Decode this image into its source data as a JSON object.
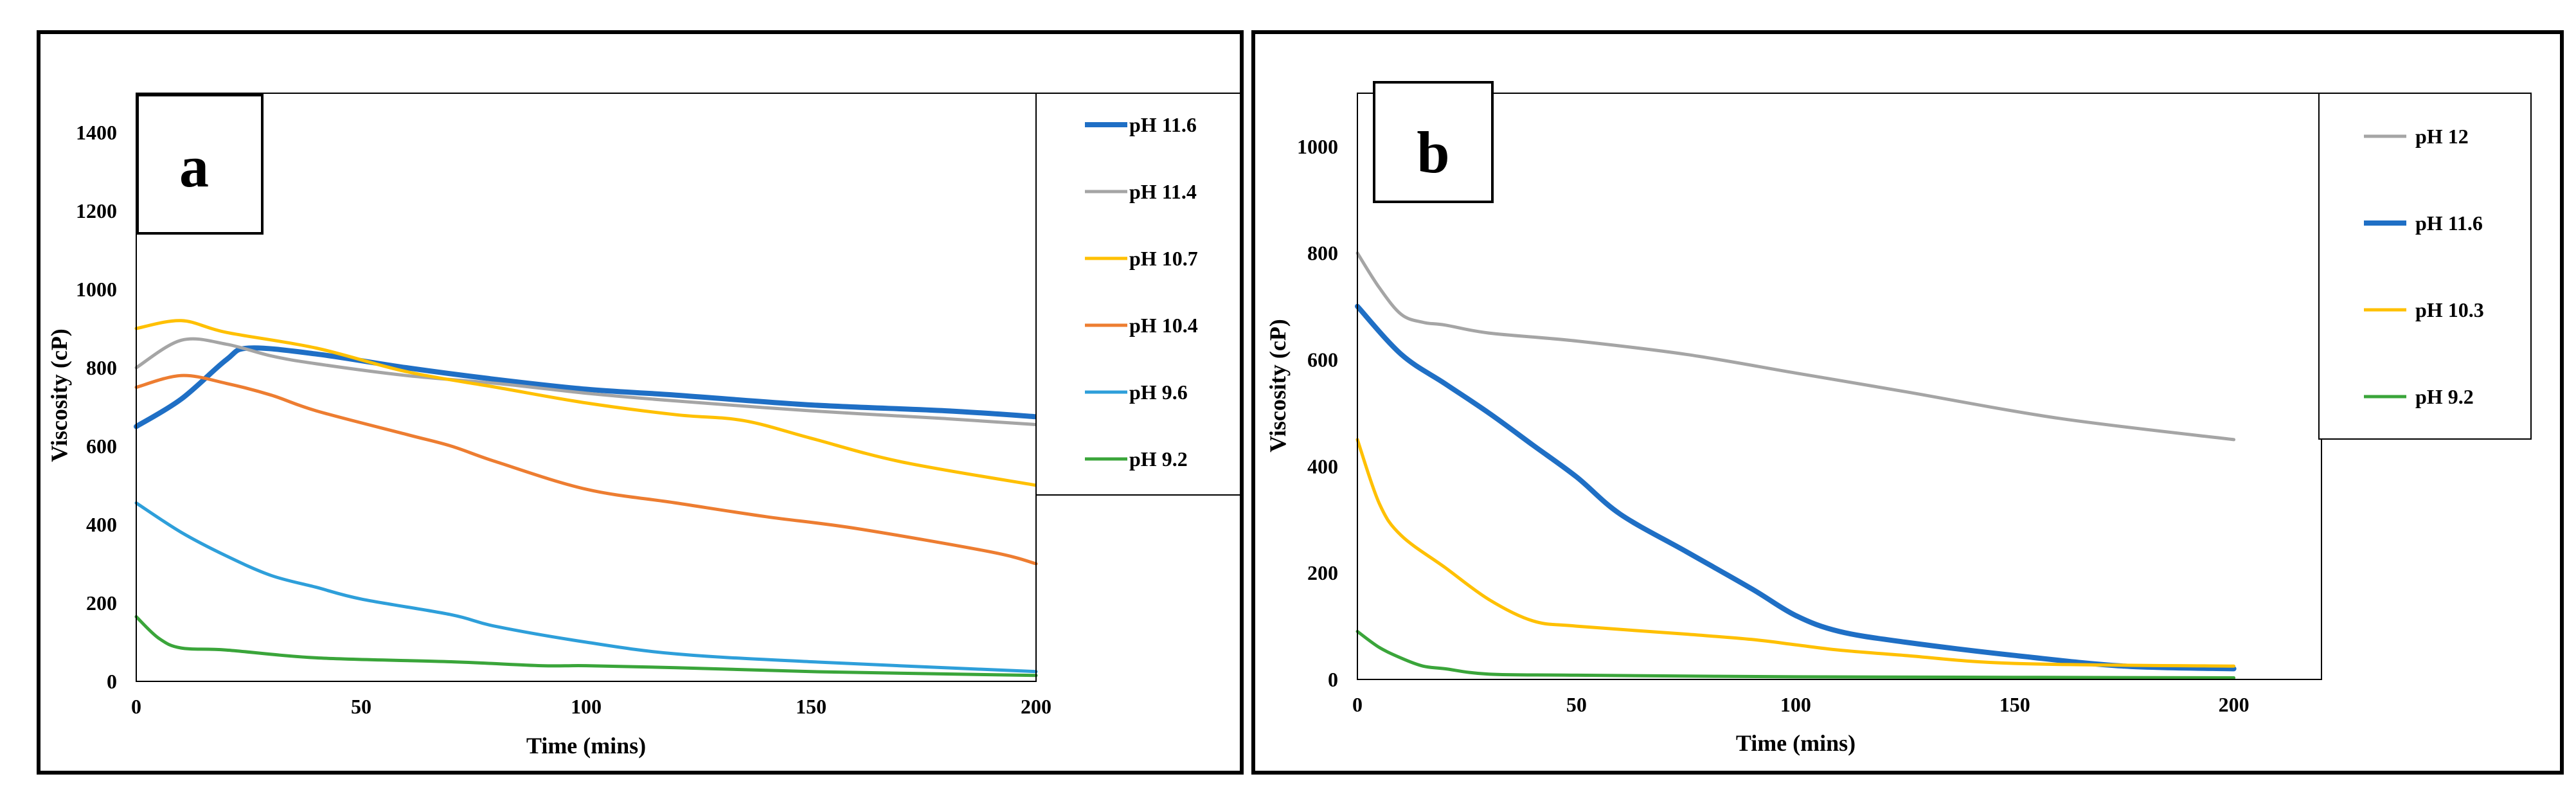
{
  "chart_data": [
    {
      "type": "line",
      "panel_label": "a",
      "xlabel": "Time (mins)",
      "ylabel": "Viscosity (cP)",
      "xlim": [
        0,
        200
      ],
      "ylim": [
        0,
        1500
      ],
      "x_ticks": [
        0,
        50,
        100,
        150,
        200
      ],
      "y_ticks": [
        0,
        200,
        400,
        600,
        800,
        1000,
        1200,
        1400
      ],
      "legend_position": "right",
      "series": [
        {
          "name": "pH 11.6",
          "color": "#1f6fc5",
          "bold": true,
          "x": [
            0,
            10,
            20,
            25,
            40,
            60,
            80,
            100,
            120,
            150,
            180,
            200
          ],
          "y": [
            650,
            720,
            820,
            850,
            835,
            800,
            770,
            745,
            730,
            705,
            690,
            675
          ]
        },
        {
          "name": "pH 11.4",
          "color": "#a5a5a5",
          "bold": false,
          "x": [
            0,
            10,
            20,
            30,
            40,
            60,
            80,
            100,
            120,
            150,
            180,
            200
          ],
          "y": [
            800,
            870,
            860,
            830,
            810,
            780,
            760,
            735,
            715,
            690,
            670,
            655
          ]
        },
        {
          "name": "pH 10.7",
          "color": "#ffc000",
          "bold": false,
          "x": [
            0,
            10,
            20,
            40,
            60,
            80,
            100,
            120,
            135,
            150,
            170,
            200
          ],
          "y": [
            900,
            920,
            890,
            850,
            790,
            750,
            710,
            680,
            665,
            620,
            560,
            500
          ]
        },
        {
          "name": "pH 10.4",
          "color": "#ed7d31",
          "bold": false,
          "x": [
            0,
            10,
            20,
            30,
            40,
            60,
            70,
            80,
            100,
            120,
            140,
            160,
            190,
            200
          ],
          "y": [
            750,
            780,
            760,
            730,
            690,
            630,
            600,
            560,
            490,
            455,
            420,
            390,
            330,
            300
          ]
        },
        {
          "name": "pH 9.6",
          "color": "#2e9fda",
          "bold": false,
          "x": [
            0,
            10,
            20,
            30,
            40,
            50,
            70,
            80,
            100,
            120,
            150,
            200
          ],
          "y": [
            455,
            380,
            320,
            270,
            240,
            210,
            170,
            140,
            100,
            70,
            50,
            25
          ]
        },
        {
          "name": "pH 9.2",
          "color": "#3aa53a",
          "bold": false,
          "x": [
            0,
            5,
            10,
            20,
            40,
            70,
            90,
            100,
            120,
            150,
            200
          ],
          "y": [
            165,
            110,
            85,
            80,
            60,
            50,
            40,
            40,
            35,
            25,
            15
          ]
        }
      ]
    },
    {
      "type": "line",
      "panel_label": "b",
      "xlabel": "Time (mins)",
      "ylabel": "Viscosity (cP)",
      "xlim": [
        0,
        220
      ],
      "ylim": [
        0,
        1100
      ],
      "x_ticks": [
        0,
        50,
        100,
        150,
        200
      ],
      "y_ticks": [
        0,
        200,
        400,
        600,
        800,
        1000
      ],
      "legend_position": "right",
      "series": [
        {
          "name": "pH 12",
          "color": "#a5a5a5",
          "bold": false,
          "x": [
            0,
            5,
            10,
            15,
            20,
            30,
            50,
            75,
            100,
            125,
            160,
            200
          ],
          "y": [
            800,
            735,
            685,
            670,
            665,
            650,
            635,
            610,
            575,
            540,
            490,
            450
          ]
        },
        {
          "name": "pH 11.6",
          "color": "#1f6fc5",
          "bold": true,
          "x": [
            0,
            10,
            20,
            30,
            40,
            50,
            60,
            75,
            90,
            100,
            110,
            125,
            150,
            175,
            200
          ],
          "y": [
            700,
            610,
            555,
            500,
            440,
            380,
            310,
            240,
            170,
            120,
            90,
            70,
            45,
            25,
            20
          ]
        },
        {
          "name": "pH 10.3",
          "color": "#ffc000",
          "bold": false,
          "x": [
            0,
            5,
            10,
            20,
            30,
            40,
            50,
            75,
            90,
            100,
            110,
            125,
            150,
            200
          ],
          "y": [
            450,
            330,
            270,
            210,
            150,
            110,
            100,
            85,
            75,
            65,
            55,
            45,
            30,
            25
          ]
        },
        {
          "name": "pH 9.2",
          "color": "#3aa53a",
          "bold": false,
          "x": [
            0,
            5,
            10,
            15,
            20,
            30,
            50,
            100,
            150,
            200
          ],
          "y": [
            90,
            60,
            40,
            25,
            20,
            10,
            8,
            5,
            4,
            3
          ]
        }
      ]
    }
  ]
}
